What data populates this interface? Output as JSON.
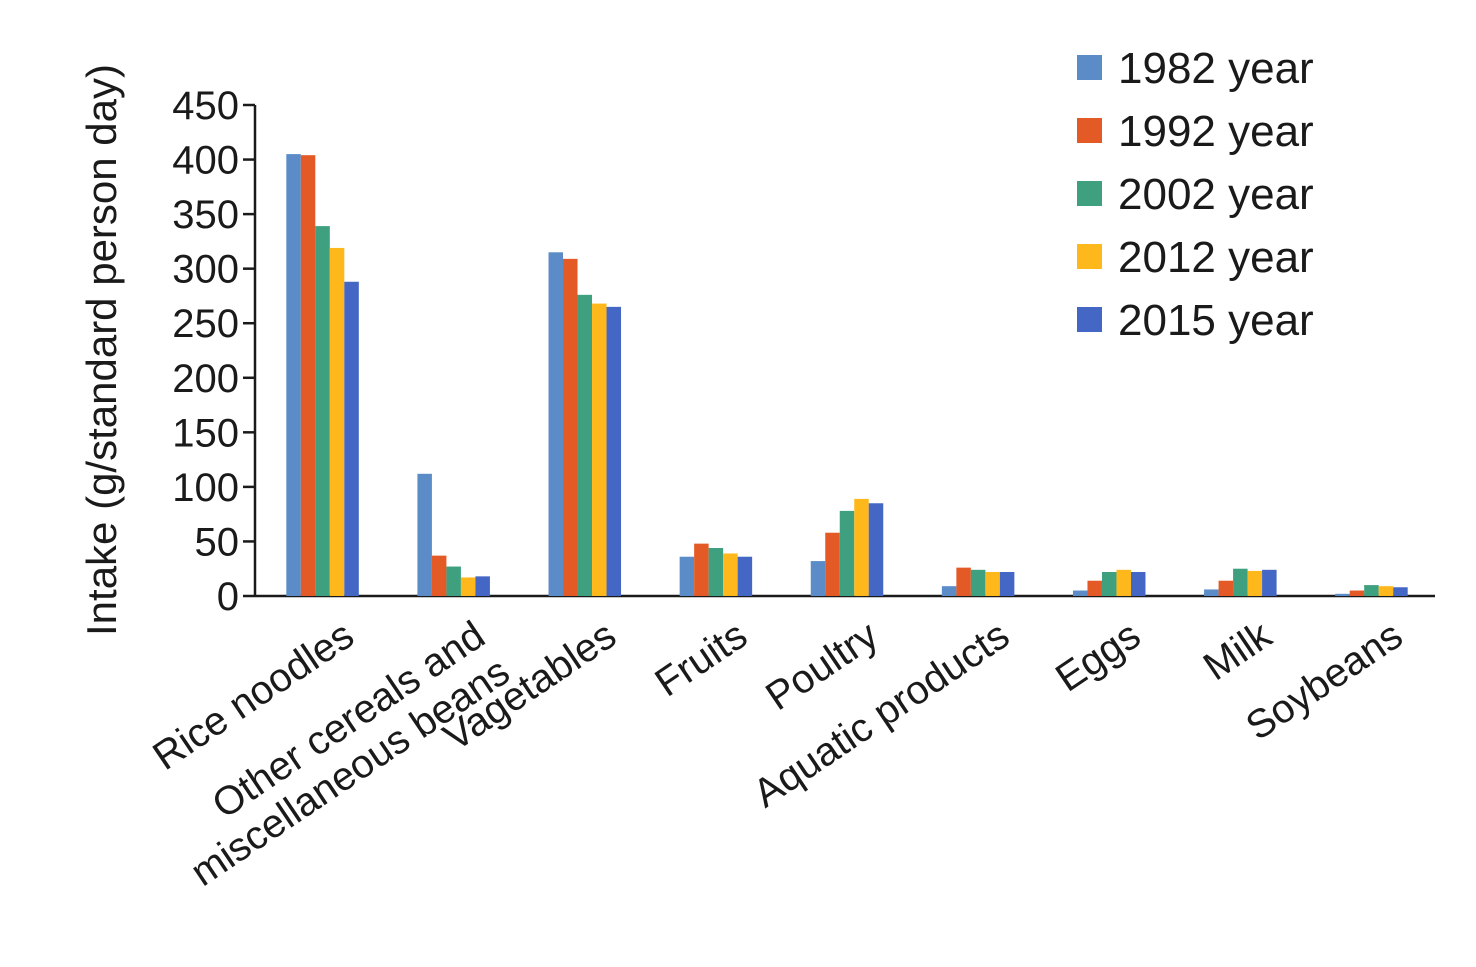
{
  "chart_data": {
    "type": "bar",
    "title": "",
    "ylabel": "Intake (g/standard person day)",
    "xlabel": "",
    "ylim": [
      0,
      450
    ],
    "yticks": [
      0,
      50,
      100,
      150,
      200,
      250,
      300,
      350,
      400,
      450
    ],
    "ytick_labels": [
      "0",
      "50",
      "100",
      "150",
      "200",
      "250",
      "300",
      "350",
      "400",
      "450"
    ],
    "grid": false,
    "legend_position": "top-right",
    "categories": [
      [
        "Rice noodles"
      ],
      [
        "Other cereals and",
        "miscellaneous beans"
      ],
      [
        "Vagetables"
      ],
      [
        "Fruits"
      ],
      [
        "Poultry"
      ],
      [
        "Aquatic products"
      ],
      [
        "Eggs"
      ],
      [
        "Milk"
      ],
      [
        "Soybeans"
      ]
    ],
    "series": [
      {
        "name": "1982 year",
        "color": "#5B8CC8",
        "values": [
          405,
          112,
          315,
          36,
          32,
          9,
          5,
          6,
          2
        ]
      },
      {
        "name": "1992 year",
        "color": "#E35A26",
        "values": [
          404,
          37,
          309,
          48,
          58,
          26,
          14,
          14,
          5
        ]
      },
      {
        "name": "2002 year",
        "color": "#3EA07E",
        "values": [
          339,
          27,
          276,
          44,
          78,
          24,
          22,
          25,
          10
        ]
      },
      {
        "name": "2012 year",
        "color": "#FFB81C",
        "values": [
          319,
          17,
          268,
          39,
          89,
          22,
          24,
          23,
          9
        ]
      },
      {
        "name": "2015 year",
        "color": "#4466C4",
        "values": [
          288,
          18,
          265,
          36,
          85,
          22,
          22,
          24,
          8
        ]
      }
    ]
  }
}
